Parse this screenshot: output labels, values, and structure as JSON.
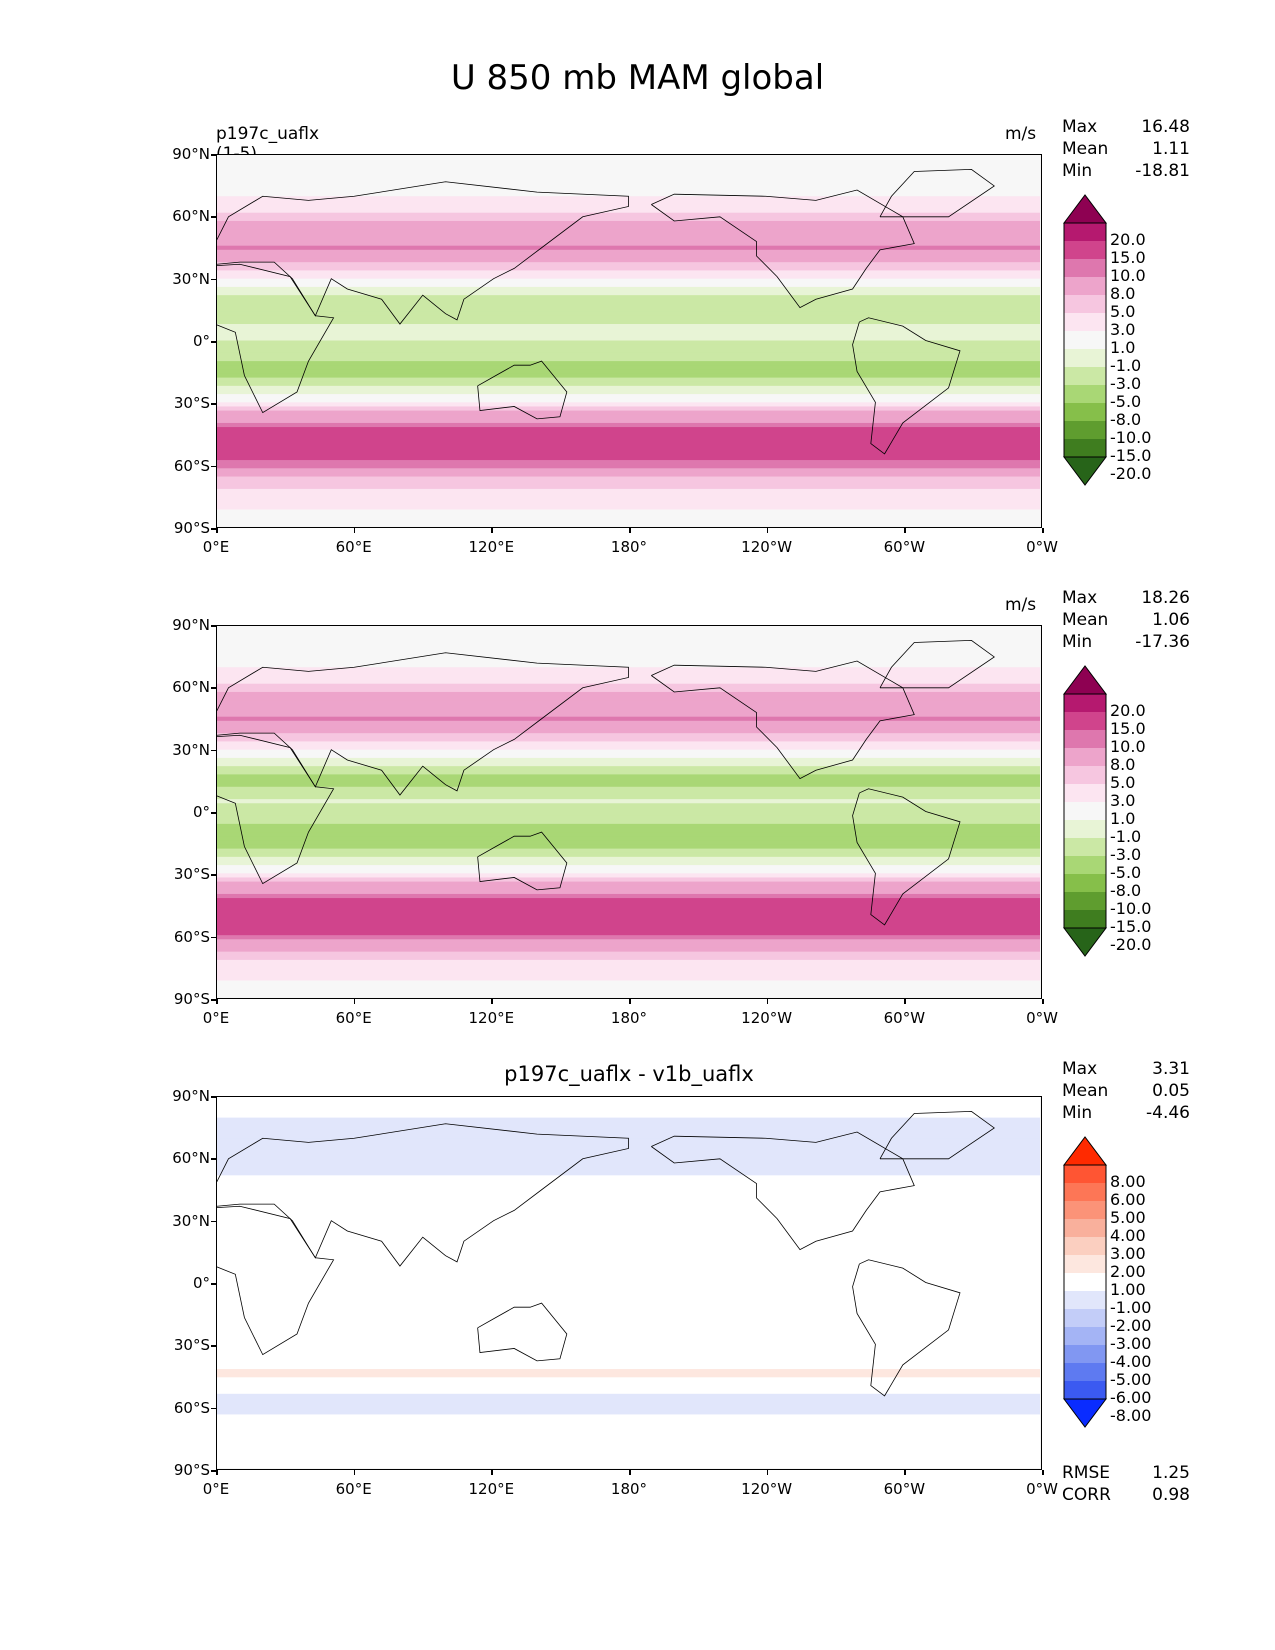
{
  "title": "U 850 mb MAM global",
  "panels": [
    {
      "id": "test",
      "left_title": "p197c_uaflx (1-5)",
      "center_title": "",
      "units": "m/s",
      "stats": [
        {
          "label": "Max",
          "value": "16.48"
        },
        {
          "label": "Mean",
          "value": "1.11"
        },
        {
          "label": "Min",
          "value": "-18.81"
        }
      ],
      "colorbar": {
        "labels": [
          "20.0",
          "15.0",
          "10.0",
          "8.0",
          "5.0",
          "3.0",
          "1.0",
          "-1.0",
          "-3.0",
          "-5.0",
          "-8.0",
          "-10.0",
          "-15.0",
          "-20.0"
        ],
        "colors": [
          "#8e0152",
          "#b5196f",
          "#d0448c",
          "#de77ae",
          "#eda4cb",
          "#f6c6e0",
          "#fce5f1",
          "#f7f7f7",
          "#e8f4d6",
          "#cbe8a5",
          "#a9d775",
          "#86bf4a",
          "#5f9d2f",
          "#3f7d1f",
          "#276419"
        ]
      },
      "extras": []
    },
    {
      "id": "reference",
      "left_title": "",
      "center_title": "",
      "units": "m/s",
      "stats": [
        {
          "label": "Max",
          "value": "18.26"
        },
        {
          "label": "Mean",
          "value": "1.06"
        },
        {
          "label": "Min",
          "value": "-17.36"
        }
      ],
      "colorbar": {
        "labels": [
          "20.0",
          "15.0",
          "10.0",
          "8.0",
          "5.0",
          "3.0",
          "1.0",
          "-1.0",
          "-3.0",
          "-5.0",
          "-8.0",
          "-10.0",
          "-15.0",
          "-20.0"
        ],
        "colors": [
          "#8e0152",
          "#b5196f",
          "#d0448c",
          "#de77ae",
          "#eda4cb",
          "#f6c6e0",
          "#fce5f1",
          "#f7f7f7",
          "#e8f4d6",
          "#cbe8a5",
          "#a9d775",
          "#86bf4a",
          "#5f9d2f",
          "#3f7d1f",
          "#276419"
        ]
      },
      "extras": []
    },
    {
      "id": "difference",
      "left_title": "",
      "center_title": "p197c_uaflx - v1b_uaflx",
      "units": "",
      "stats": [
        {
          "label": "Max",
          "value": "3.31"
        },
        {
          "label": "Mean",
          "value": "0.05"
        },
        {
          "label": "Min",
          "value": "-4.46"
        }
      ],
      "colorbar": {
        "labels": [
          "8.00",
          "6.00",
          "5.00",
          "4.00",
          "3.00",
          "2.00",
          "1.00",
          "-1.00",
          "-2.00",
          "-3.00",
          "-4.00",
          "-5.00",
          "-6.00",
          "-8.00"
        ],
        "colors": [
          "#ff2a00",
          "#ff5533",
          "#fd7656",
          "#fb9378",
          "#f9b09c",
          "#fbcfc0",
          "#fde7df",
          "#ffffff",
          "#e1e6fb",
          "#c3cdf8",
          "#a4b4f5",
          "#8197f2",
          "#5e7af1",
          "#3b5af1",
          "#0a2cff"
        ]
      },
      "extras": [
        {
          "label": "RMSE",
          "value": "1.25"
        },
        {
          "label": "CORR",
          "value": "0.98"
        }
      ]
    }
  ],
  "axes": {
    "y_ticks": [
      "90°N",
      "60°N",
      "30°N",
      "0°",
      "30°S",
      "60°S",
      "90°S"
    ],
    "x_ticks": [
      "0°E",
      "60°E",
      "120°E",
      "180°",
      "120°W",
      "60°W",
      "0°W"
    ]
  },
  "chart_data": [
    {
      "type": "heatmap",
      "title": "p197c_uaflx (1-5)",
      "units": "m/s",
      "xlim": [
        0,
        360
      ],
      "ylim": [
        -90,
        90
      ],
      "x_tick_labels": [
        "0°E",
        "60°E",
        "120°E",
        "180°",
        "120°W",
        "60°W",
        "0°W"
      ],
      "y_tick_labels": [
        "90°N",
        "60°N",
        "30°N",
        "0°",
        "30°S",
        "60°S",
        "90°S"
      ],
      "levels": [
        -20,
        -15,
        -10,
        -8,
        -5,
        -3,
        -1,
        1,
        3,
        5,
        8,
        10,
        15,
        20
      ],
      "stats": {
        "max": 16.48,
        "mean": 1.11,
        "min": -18.81
      },
      "zonal_profile_lat": [
        -90,
        -75,
        -65,
        -55,
        -45,
        -35,
        -25,
        -15,
        -5,
        5,
        15,
        25,
        35,
        45,
        55,
        65,
        75,
        90
      ],
      "zonal_profile_u": [
        0,
        2,
        5,
        13,
        12,
        5,
        -2,
        -6,
        -4,
        -2,
        -5,
        -2,
        4,
        8,
        6,
        2,
        0,
        0
      ]
    },
    {
      "type": "heatmap",
      "title": "",
      "units": "m/s",
      "xlim": [
        0,
        360
      ],
      "ylim": [
        -90,
        90
      ],
      "x_tick_labels": [
        "0°E",
        "60°E",
        "120°E",
        "180°",
        "120°W",
        "60°W",
        "0°W"
      ],
      "y_tick_labels": [
        "90°N",
        "60°N",
        "30°N",
        "0°",
        "30°S",
        "60°S",
        "90°S"
      ],
      "levels": [
        -20,
        -15,
        -10,
        -8,
        -5,
        -3,
        -1,
        1,
        3,
        5,
        8,
        10,
        15,
        20
      ],
      "stats": {
        "max": 18.26,
        "mean": 1.06,
        "min": -17.36
      },
      "zonal_profile_lat": [
        -90,
        -75,
        -65,
        -55,
        -45,
        -35,
        -25,
        -15,
        -5,
        5,
        15,
        25,
        35,
        45,
        55,
        65,
        75,
        90
      ],
      "zonal_profile_u": [
        0,
        2,
        6,
        14,
        12,
        5,
        -2,
        -7,
        -5,
        -3,
        -6,
        -2,
        4,
        8,
        6,
        2,
        0,
        0
      ]
    },
    {
      "type": "heatmap",
      "title": "p197c_uaflx - v1b_uaflx",
      "units": "",
      "xlim": [
        0,
        360
      ],
      "ylim": [
        -90,
        90
      ],
      "x_tick_labels": [
        "0°E",
        "60°E",
        "120°E",
        "180°",
        "120°W",
        "60°W",
        "0°W"
      ],
      "y_tick_labels": [
        "90°N",
        "60°N",
        "30°N",
        "0°",
        "30°S",
        "60°S",
        "90°S"
      ],
      "levels": [
        -8,
        -6,
        -5,
        -4,
        -3,
        -2,
        -1,
        1,
        2,
        3,
        4,
        5,
        6,
        8
      ],
      "stats": {
        "max": 3.31,
        "mean": 0.05,
        "min": -4.46,
        "rmse": 1.25,
        "corr": 0.98
      },
      "zonal_profile_lat": [
        -90,
        -75,
        -65,
        -55,
        -45,
        -35,
        -25,
        -15,
        -5,
        5,
        15,
        25,
        35,
        45,
        55,
        65,
        75,
        90
      ],
      "zonal_profile_u": [
        0,
        0,
        -1,
        -1.5,
        1.5,
        -1,
        0.5,
        0,
        0.5,
        0.5,
        0,
        0.5,
        0,
        0.5,
        -1.5,
        -2,
        -1.5,
        0
      ]
    }
  ]
}
